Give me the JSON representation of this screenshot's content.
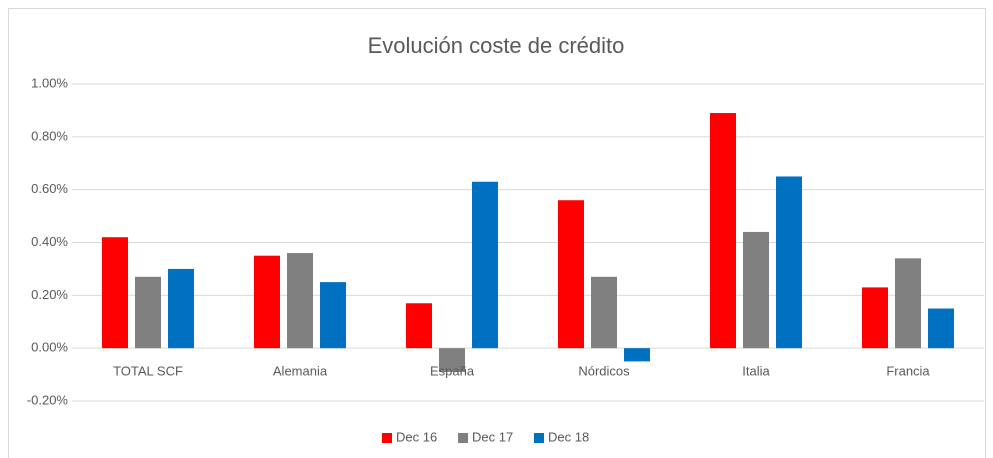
{
  "chart_data": {
    "type": "bar",
    "title": "Evolución coste de crédito",
    "categories": [
      "TOTAL SCF",
      "Alemania",
      "España",
      "Nórdicos",
      "Italia",
      "Francia"
    ],
    "series": [
      {
        "name": "Dec 16",
        "color": "#ff0000",
        "values": [
          0.42,
          0.35,
          0.17,
          0.56,
          0.89,
          0.23
        ]
      },
      {
        "name": "Dec 17",
        "color": "#808080",
        "values": [
          0.27,
          0.36,
          -0.09,
          0.27,
          0.44,
          0.34
        ]
      },
      {
        "name": "Dec 18",
        "color": "#0070c0",
        "values": [
          0.3,
          0.25,
          0.63,
          -0.05,
          0.65,
          0.15
        ]
      }
    ],
    "ylim": [
      -0.2,
      1.0
    ],
    "yticks": [
      {
        "value": -0.2,
        "label": "-0.20%"
      },
      {
        "value": 0,
        "label": "0.00%"
      },
      {
        "value": 0.2,
        "label": "0.20%"
      },
      {
        "value": 0.4,
        "label": "0.40%"
      },
      {
        "value": 0.6,
        "label": "0.60%"
      },
      {
        "value": 0.8,
        "label": "0.80%"
      },
      {
        "value": 1.0,
        "label": "1.00%"
      }
    ],
    "grid": true,
    "legend": "bottom"
  }
}
